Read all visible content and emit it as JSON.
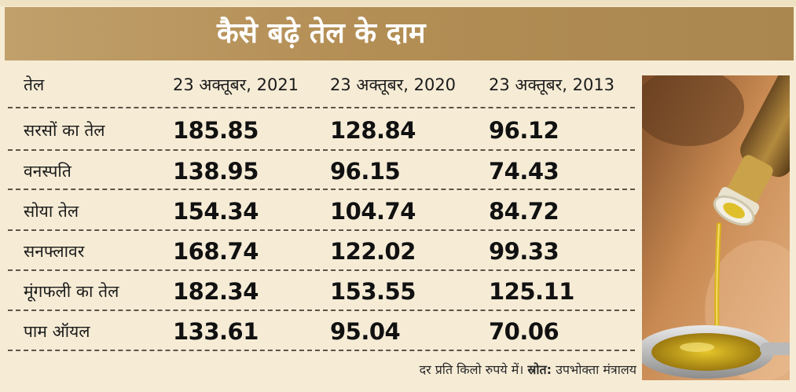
{
  "title": "कैसे बढ़े तेल के दाम",
  "chart_data": {
    "type": "table",
    "columns": [
      "तेल",
      "23 अक्तूबर, 2021",
      "23 अक्तूबर, 2020",
      "23 अक्तूबर, 2013"
    ],
    "rows": [
      {
        "oil": "सरसों का तेल",
        "values": [
          "185.85",
          "128.84",
          "96.12"
        ]
      },
      {
        "oil": "वनस्पति",
        "values": [
          "138.95",
          "96.15",
          "74.43"
        ]
      },
      {
        "oil": "सोया तेल",
        "values": [
          "154.34",
          "104.74",
          "84.72"
        ]
      },
      {
        "oil": "सनफ्लावर",
        "values": [
          "168.74",
          "122.02",
          "99.33"
        ]
      },
      {
        "oil": "मूंगफली का तेल",
        "values": [
          "182.34",
          "153.55",
          "125.11"
        ]
      },
      {
        "oil": "पाम ऑयल",
        "values": [
          "133.61",
          "95.04",
          "70.06"
        ]
      }
    ]
  },
  "footnote": {
    "text": "दर प्रति किलो रुपये में। ",
    "source_label": "स्रोत:",
    "source": " उपभोक्ता मंत्रालय"
  },
  "colors": {
    "background": "#f6ecd6",
    "title_band": "#b38e55",
    "title_text": "#ffffff",
    "oil": "#d9b21a"
  },
  "icons": {
    "photo": "oil-pouring-photo"
  }
}
